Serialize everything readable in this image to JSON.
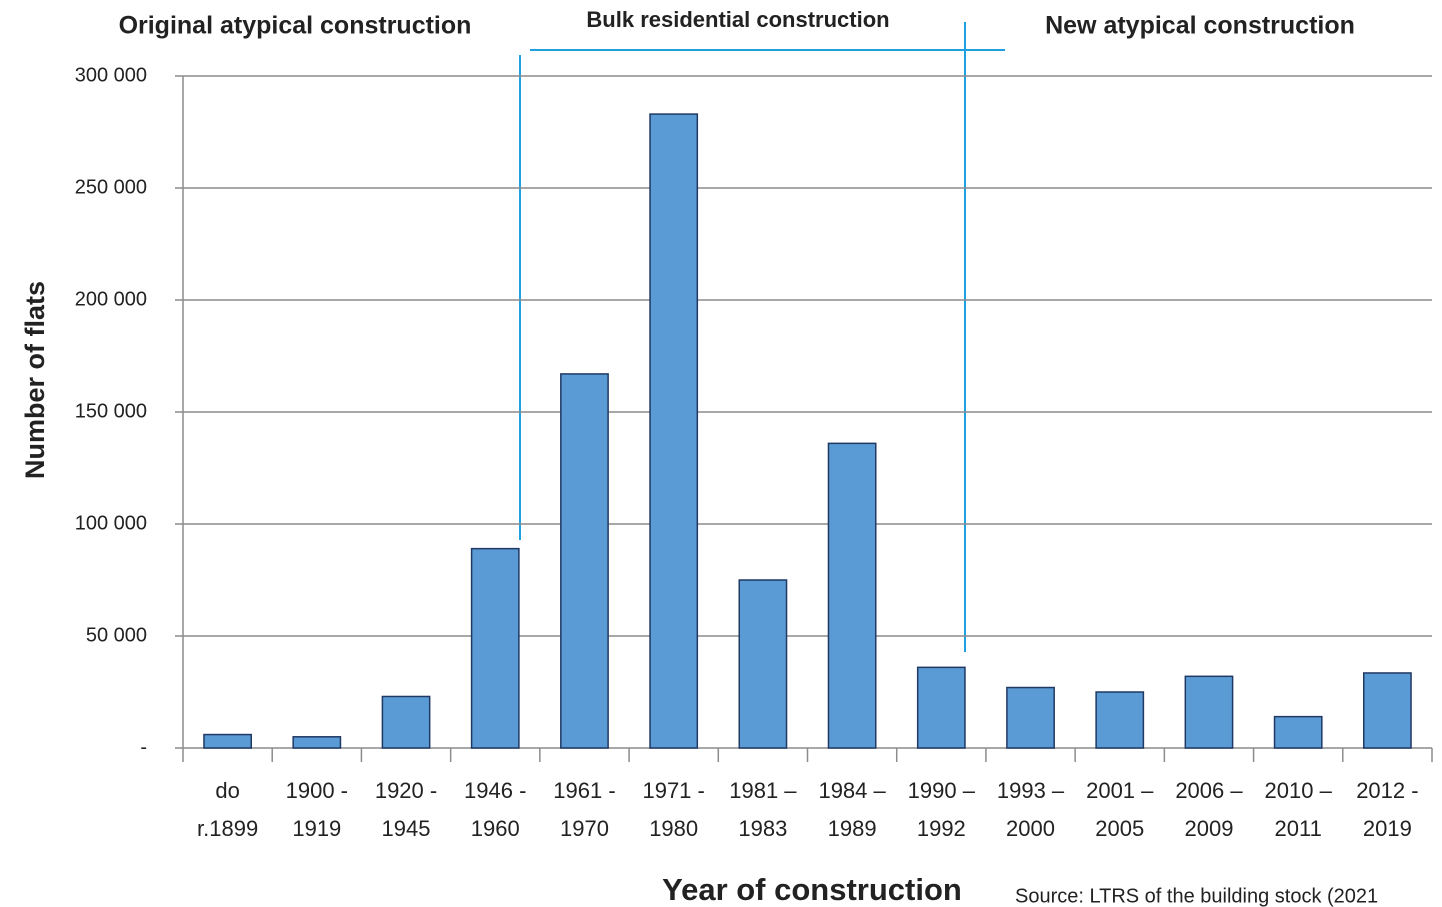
{
  "chart_data": {
    "type": "bar",
    "ylabel": "Number of flats",
    "xlabel": "Year of construction",
    "annotations": [
      "Original atypical construction",
      "Bulk residential construction",
      "New atypical construction"
    ],
    "source": "Source: LTRS of the building stock (2021",
    "categories": [
      [
        "do",
        "r.1899"
      ],
      [
        "1900 -",
        "1919"
      ],
      [
        "1920 -",
        "1945"
      ],
      [
        "1946 -",
        "1960"
      ],
      [
        "1961 -",
        "1970"
      ],
      [
        "1971 -",
        "1980"
      ],
      [
        "1981 –",
        "1983"
      ],
      [
        "1984 –",
        "1989"
      ],
      [
        "1990 –",
        "1992"
      ],
      [
        "1993 –",
        "2000"
      ],
      [
        "2001 –",
        "2005"
      ],
      [
        "2006 –",
        "2009"
      ],
      [
        "2010 –",
        "2011"
      ],
      [
        "2012 -",
        "2019"
      ]
    ],
    "values": [
      6000,
      5000,
      23000,
      89000,
      167000,
      283000,
      75000,
      136000,
      36000,
      27000,
      25000,
      32000,
      14000,
      33500
    ],
    "color": "#5b9bd5",
    "ylim": [
      0,
      300000
    ],
    "yticks": [
      {
        "value": 0,
        "label": "-"
      },
      {
        "value": 50000,
        "label": "50 000"
      },
      {
        "value": 100000,
        "label": "100 000"
      },
      {
        "value": 150000,
        "label": "150 000"
      },
      {
        "value": 200000,
        "label": "200 000"
      },
      {
        "value": 250000,
        "label": "250 000"
      },
      {
        "value": 300000,
        "label": "300 000"
      }
    ],
    "grid": true
  }
}
